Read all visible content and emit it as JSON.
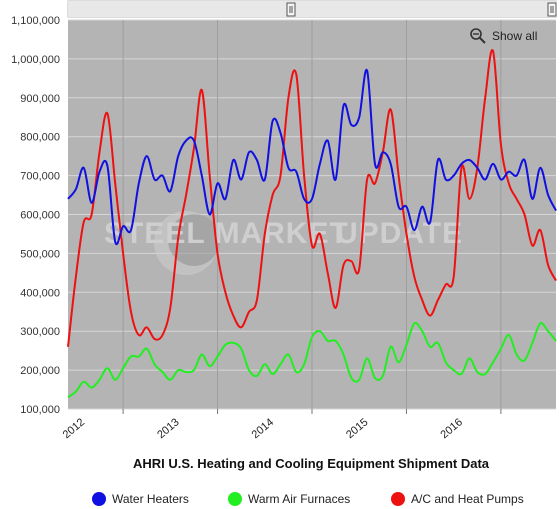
{
  "show_all_label": "Show all",
  "watermark": {
    "brand": "STEEL MARKET",
    "suffix": "UPDATE"
  },
  "chart_data": {
    "type": "line",
    "title": "AHRI U.S. Heating and Cooling Equipment Shipment Data",
    "ylim": [
      100000,
      1100000
    ],
    "yticks": [
      "100,000",
      "200,000",
      "300,000",
      "400,000",
      "500,000",
      "600,000",
      "700,000",
      "800,000",
      "900,000",
      "1,000,000",
      "1,100,000"
    ],
    "xticks": [
      "2012",
      "2013",
      "2014",
      "2015",
      "2016"
    ],
    "xrange": [
      "2011-06",
      "2016-08"
    ],
    "grid": true,
    "legend_position": "bottom",
    "series": [
      {
        "name": "Water Heaters",
        "color": "#1010e0",
        "x": [
          "2011-06",
          "2011-07",
          "2011-08",
          "2011-09",
          "2011-10",
          "2011-11",
          "2011-12",
          "2012-01",
          "2012-02",
          "2012-03",
          "2012-04",
          "2012-05",
          "2012-06",
          "2012-07",
          "2012-08",
          "2012-09",
          "2012-10",
          "2012-11",
          "2012-12",
          "2013-01",
          "2013-02",
          "2013-03",
          "2013-04",
          "2013-05",
          "2013-06",
          "2013-07",
          "2013-08",
          "2013-09",
          "2013-10",
          "2013-11",
          "2013-12",
          "2014-01",
          "2014-02",
          "2014-03",
          "2014-04",
          "2014-05",
          "2014-06",
          "2014-07",
          "2014-08",
          "2014-09",
          "2014-10",
          "2014-11",
          "2014-12",
          "2015-01",
          "2015-02",
          "2015-03",
          "2015-04",
          "2015-05",
          "2015-06",
          "2015-07",
          "2015-08",
          "2015-09",
          "2015-10",
          "2015-11",
          "2015-12",
          "2016-01",
          "2016-02",
          "2016-03",
          "2016-04",
          "2016-05",
          "2016-06",
          "2016-07",
          "2016-08"
        ],
        "values": [
          640000,
          665000,
          720000,
          630000,
          710000,
          725000,
          530000,
          570000,
          560000,
          680000,
          750000,
          690000,
          700000,
          660000,
          750000,
          790000,
          790000,
          700000,
          600000,
          680000,
          640000,
          740000,
          690000,
          760000,
          740000,
          690000,
          840000,
          810000,
          720000,
          710000,
          640000,
          640000,
          730000,
          790000,
          690000,
          880000,
          830000,
          850000,
          970000,
          730000,
          760000,
          730000,
          620000,
          620000,
          560000,
          620000,
          580000,
          740000,
          690000,
          700000,
          730000,
          740000,
          720000,
          690000,
          730000,
          690000,
          710000,
          700000,
          740000,
          640000,
          720000,
          650000,
          610000
        ]
      },
      {
        "name": "Warm Air Furnaces",
        "color": "#22ee22",
        "x": [
          "2011-06",
          "2011-07",
          "2011-08",
          "2011-09",
          "2011-10",
          "2011-11",
          "2011-12",
          "2012-01",
          "2012-02",
          "2012-03",
          "2012-04",
          "2012-05",
          "2012-06",
          "2012-07",
          "2012-08",
          "2012-09",
          "2012-10",
          "2012-11",
          "2012-12",
          "2013-01",
          "2013-02",
          "2013-03",
          "2013-04",
          "2013-05",
          "2013-06",
          "2013-07",
          "2013-08",
          "2013-09",
          "2013-10",
          "2013-11",
          "2013-12",
          "2014-01",
          "2014-02",
          "2014-03",
          "2014-04",
          "2014-05",
          "2014-06",
          "2014-07",
          "2014-08",
          "2014-09",
          "2014-10",
          "2014-11",
          "2014-12",
          "2015-01",
          "2015-02",
          "2015-03",
          "2015-04",
          "2015-05",
          "2015-06",
          "2015-07",
          "2015-08",
          "2015-09",
          "2015-10",
          "2015-11",
          "2015-12",
          "2016-01",
          "2016-02",
          "2016-03",
          "2016-04",
          "2016-05",
          "2016-06",
          "2016-07",
          "2016-08"
        ],
        "values": [
          130000,
          145000,
          170000,
          155000,
          175000,
          205000,
          175000,
          205000,
          235000,
          235000,
          255000,
          215000,
          195000,
          175000,
          200000,
          195000,
          200000,
          240000,
          210000,
          235000,
          265000,
          270000,
          255000,
          200000,
          185000,
          215000,
          190000,
          215000,
          240000,
          195000,
          215000,
          285000,
          300000,
          275000,
          275000,
          240000,
          180000,
          175000,
          230000,
          180000,
          185000,
          260000,
          220000,
          265000,
          320000,
          300000,
          260000,
          270000,
          220000,
          200000,
          190000,
          230000,
          195000,
          190000,
          220000,
          255000,
          290000,
          240000,
          225000,
          270000,
          320000,
          300000,
          275000
        ]
      },
      {
        "name": "A/C and Heat Pumps",
        "color": "#ee1111",
        "x": [
          "2011-06",
          "2011-07",
          "2011-08",
          "2011-09",
          "2011-10",
          "2011-11",
          "2011-12",
          "2012-01",
          "2012-02",
          "2012-03",
          "2012-04",
          "2012-05",
          "2012-06",
          "2012-07",
          "2012-08",
          "2012-09",
          "2012-10",
          "2012-11",
          "2012-12",
          "2013-01",
          "2013-02",
          "2013-03",
          "2013-04",
          "2013-05",
          "2013-06",
          "2013-07",
          "2013-08",
          "2013-09",
          "2013-10",
          "2013-11",
          "2013-12",
          "2014-01",
          "2014-02",
          "2014-03",
          "2014-04",
          "2014-05",
          "2014-06",
          "2014-07",
          "2014-08",
          "2014-09",
          "2014-10",
          "2014-11",
          "2014-12",
          "2015-01",
          "2015-02",
          "2015-03",
          "2015-04",
          "2015-05",
          "2015-06",
          "2015-07",
          "2015-08",
          "2015-09",
          "2015-10",
          "2015-11",
          "2015-12",
          "2016-01",
          "2016-02",
          "2016-03",
          "2016-04",
          "2016-05",
          "2016-06",
          "2016-07",
          "2016-08"
        ],
        "values": [
          260000,
          440000,
          580000,
          600000,
          760000,
          860000,
          680000,
          500000,
          350000,
          290000,
          310000,
          280000,
          290000,
          360000,
          540000,
          650000,
          770000,
          920000,
          700000,
          500000,
          400000,
          340000,
          310000,
          350000,
          380000,
          550000,
          650000,
          700000,
          900000,
          960000,
          700000,
          520000,
          550000,
          450000,
          360000,
          470000,
          480000,
          460000,
          690000,
          680000,
          760000,
          870000,
          700000,
          550000,
          440000,
          380000,
          340000,
          380000,
          420000,
          440000,
          720000,
          640000,
          720000,
          900000,
          1020000,
          780000,
          680000,
          640000,
          600000,
          520000,
          560000,
          470000,
          430000
        ]
      }
    ]
  }
}
